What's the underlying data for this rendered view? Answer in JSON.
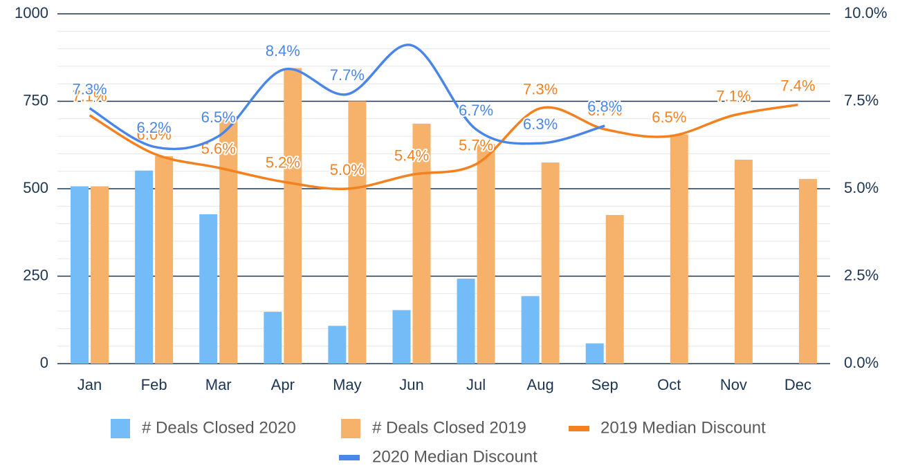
{
  "chart_data": {
    "type": "bar",
    "categories": [
      "Jan",
      "Feb",
      "Mar",
      "Apr",
      "May",
      "Jun",
      "Jul",
      "Aug",
      "Sep",
      "Oct",
      "Nov",
      "Dec"
    ],
    "series": [
      {
        "name": "# Deals Closed 2020",
        "type": "bar",
        "color": "#74bcf8",
        "values": [
          507,
          552,
          427,
          148,
          108,
          153,
          243,
          193,
          58,
          null,
          null,
          null
        ]
      },
      {
        "name": "# Deals Closed 2019",
        "type": "bar",
        "color": "#f6b26b",
        "values": [
          507,
          593,
          708,
          845,
          750,
          686,
          628,
          575,
          425,
          655,
          583,
          528
        ]
      },
      {
        "name": "2019 Median Discount",
        "type": "line",
        "axis": "y2",
        "color": "#f4811f",
        "values": [
          7.1,
          6.0,
          5.6,
          5.2,
          5.0,
          5.4,
          5.7,
          7.3,
          6.7,
          6.5,
          7.1,
          7.4
        ],
        "value_labels": [
          "7.1%",
          "6.0%",
          "5.6%",
          "5.2%",
          "5.0%",
          "5.4%",
          "5.7%",
          "7.3%",
          "6.7%",
          "6.5%",
          "7.1%",
          "7.4%"
        ]
      },
      {
        "name": "2020 Median Discount",
        "type": "line",
        "axis": "y2",
        "color": "#4a86e8",
        "values": [
          7.3,
          6.2,
          6.5,
          8.4,
          7.7,
          9.1,
          6.7,
          6.3,
          6.8,
          null,
          null,
          null
        ],
        "value_labels": [
          "7.3%",
          "6.2%",
          "6.5%",
          "8.4%",
          "7.7%",
          null,
          "6.7%",
          "6.3%",
          "6.8%",
          null,
          null,
          null
        ]
      }
    ],
    "ylim": [
      0,
      1000
    ],
    "yticks": [
      0,
      250,
      500,
      750,
      1000
    ],
    "y2lim": [
      0,
      10
    ],
    "y2ticks": [
      {
        "value": 0,
        "label": "0.0%"
      },
      {
        "value": 2.5,
        "label": "2.5%"
      },
      {
        "value": 5,
        "label": "5.0%"
      },
      {
        "value": 7.5,
        "label": "7.5%"
      },
      {
        "value": 10,
        "label": "10.0%"
      }
    ],
    "grid": true,
    "legend": "bottom"
  }
}
